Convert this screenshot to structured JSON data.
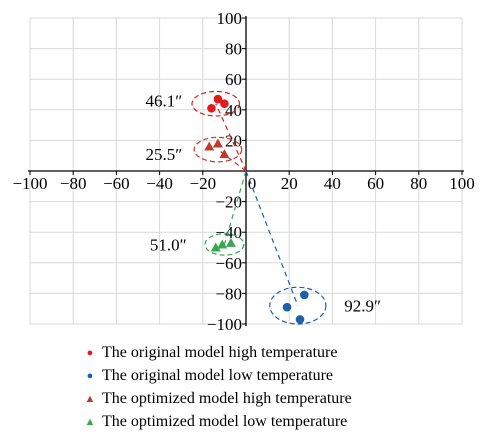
{
  "chart_data": {
    "type": "scatter",
    "xlim": [
      -100,
      100
    ],
    "ylim": [
      -100,
      100
    ],
    "grid": true,
    "axes": "centered-at-origin",
    "xticks": [
      "−100",
      "−80",
      "−60",
      "−40",
      "−20",
      "0",
      "20",
      "40",
      "60",
      "80",
      "100"
    ],
    "yticks": [
      "−100",
      "−80",
      "−60",
      "−40",
      "−20",
      "20",
      "40",
      "60",
      "80",
      "100"
    ],
    "series": [
      {
        "name": "The original model high temperature",
        "marker": "circle",
        "color": "#e31a1c",
        "points": [
          [
            -16,
            41
          ],
          [
            -13,
            47
          ],
          [
            -10,
            44
          ]
        ]
      },
      {
        "name": "The original model low temperature",
        "marker": "circle",
        "color": "#1f5fa8",
        "points": [
          [
            19,
            -89
          ],
          [
            25,
            -97
          ],
          [
            27,
            -81
          ]
        ]
      },
      {
        "name": "The optimized model high temperature",
        "marker": "triangle",
        "color": "#c0392b",
        "points": [
          [
            -17,
            16
          ],
          [
            -13,
            18
          ],
          [
            -10,
            11
          ]
        ]
      },
      {
        "name": "The optimized model low temperature",
        "marker": "triangle",
        "color": "#3aa655",
        "points": [
          [
            -14,
            -50
          ],
          [
            -11,
            -48
          ],
          [
            -7,
            -47
          ]
        ]
      }
    ],
    "groups": [
      {
        "label": "46.1″",
        "center": [
          -14,
          44
        ],
        "rx": 11,
        "ry": 8,
        "color": "#e31a1c",
        "label_at": [
          -38,
          46
        ]
      },
      {
        "label": "25.5″",
        "center": [
          -13,
          14
        ],
        "rx": 11,
        "ry": 8,
        "color": "#c0392b",
        "label_at": [
          -38,
          11
        ]
      },
      {
        "label": "51.0″",
        "center": [
          -10,
          -48
        ],
        "rx": 9,
        "ry": 7,
        "color": "#3aa655",
        "label_at": [
          -36,
          -48
        ]
      },
      {
        "label": "92.9″",
        "center": [
          24,
          -88
        ],
        "rx": 13,
        "ry": 12,
        "color": "#1f5fa8",
        "label_at": [
          54,
          -88
        ]
      }
    ],
    "connectors": [
      {
        "from": [
          0,
          0
        ],
        "to": [
          -14,
          44
        ],
        "color": "#e31a1c"
      },
      {
        "from": [
          0,
          0
        ],
        "to": [
          -13,
          14
        ],
        "color": "#c0392b"
      },
      {
        "from": [
          0,
          0
        ],
        "to": [
          -10,
          -48
        ],
        "color": "#3aa655"
      },
      {
        "from": [
          0,
          0
        ],
        "to": [
          24,
          -88
        ],
        "color": "#1f5fa8"
      }
    ]
  }
}
